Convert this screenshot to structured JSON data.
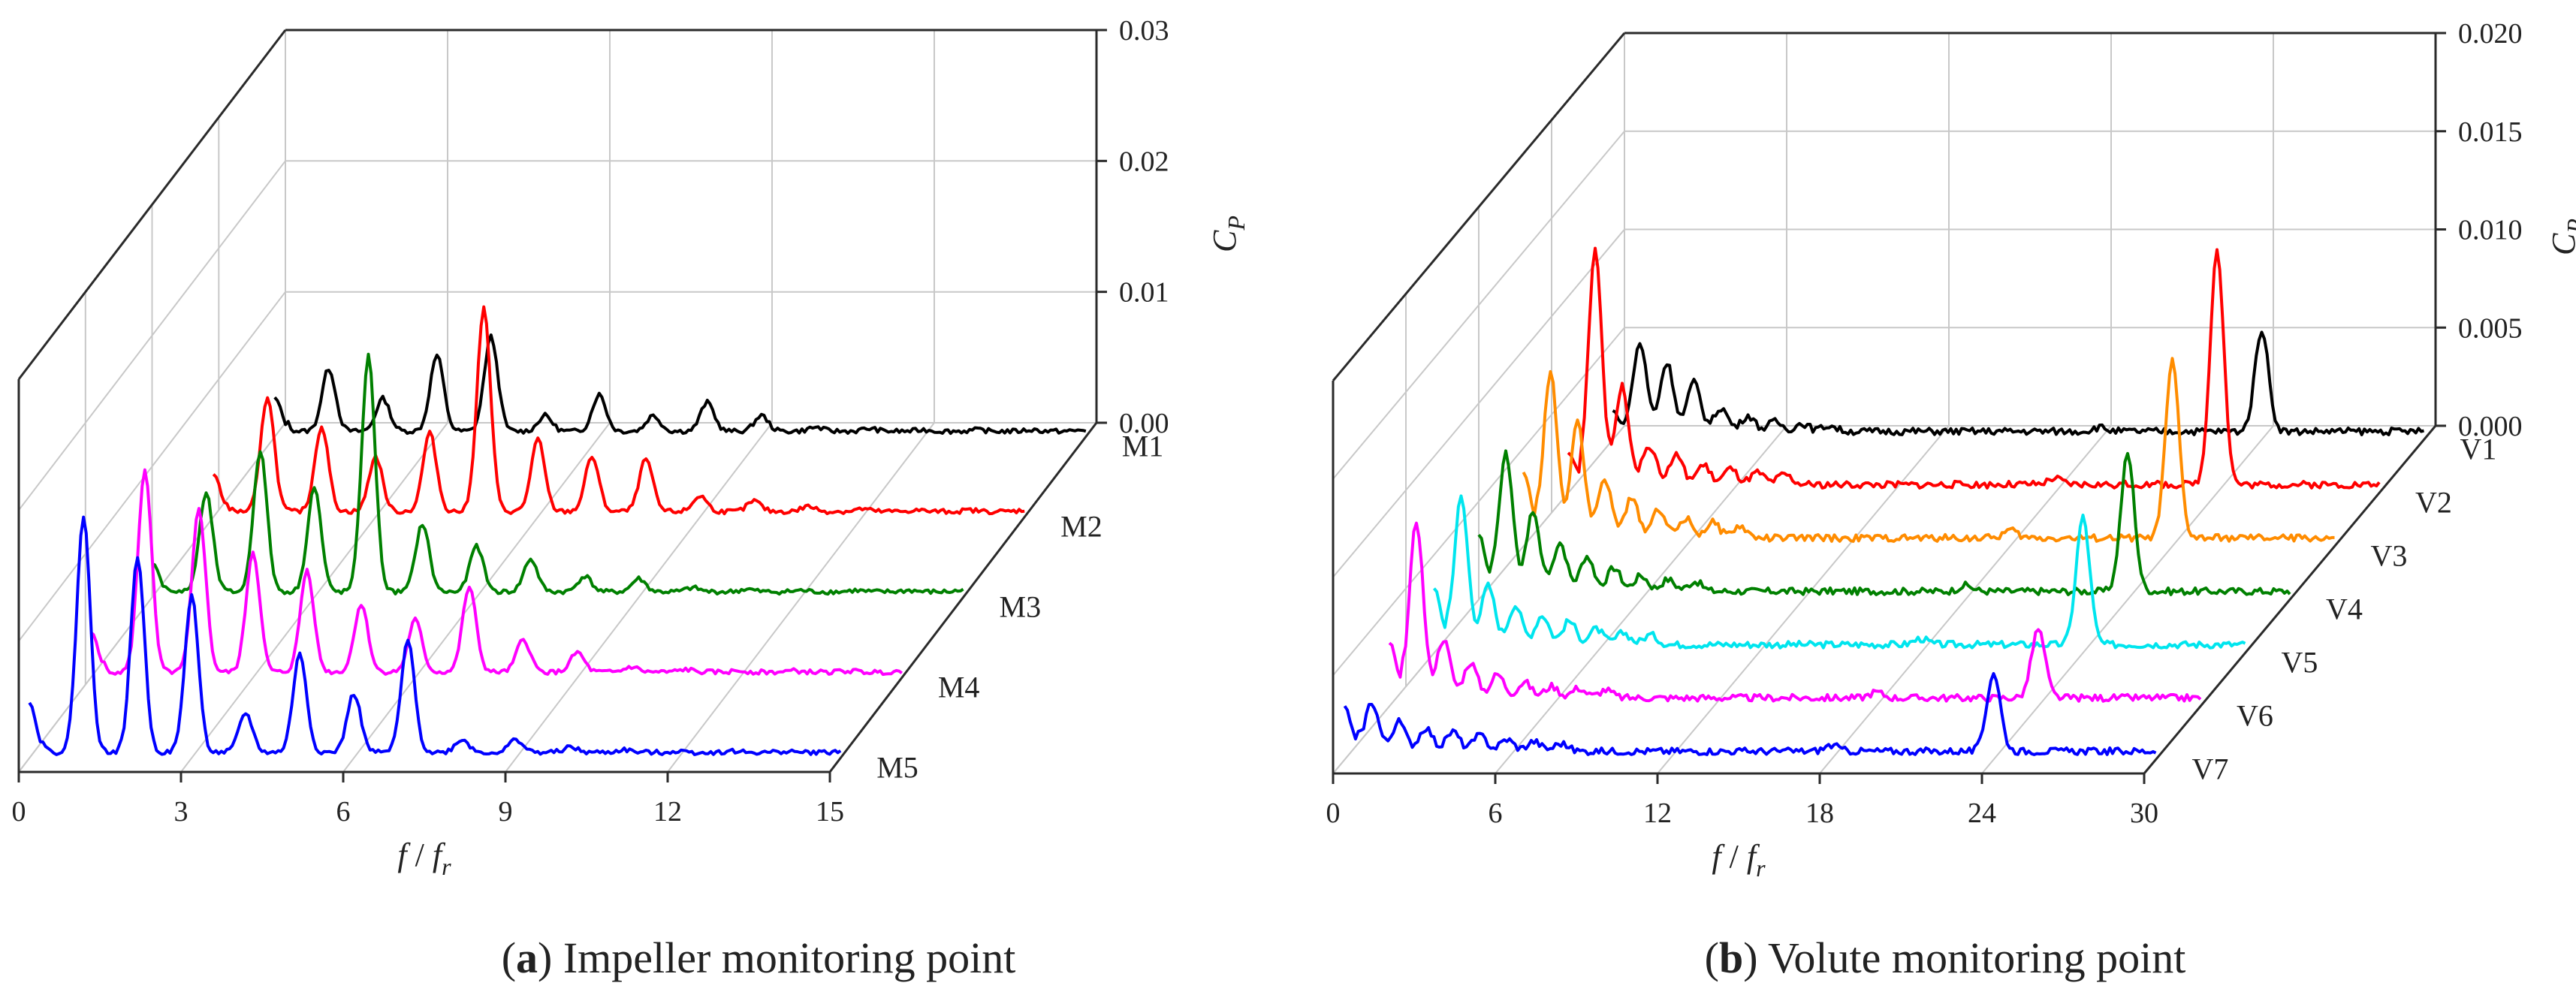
{
  "chart_data": [
    {
      "panel": "a",
      "type": "line",
      "caption_letter": "a",
      "caption_text": "Impeller monitoring point",
      "xlabel_f": "f",
      "xlabel_sep": " / ",
      "xlabel_fr": "f",
      "xlabel_fr_sub": "r",
      "zlabel": "C",
      "zlabel_sub": "P",
      "xlim": [
        0,
        15
      ],
      "xticks": [
        0,
        3,
        6,
        9,
        12,
        15
      ],
      "zlim": [
        0,
        0.03
      ],
      "zticks": [
        "0.00",
        "0.01",
        "0.02",
        "0.03"
      ],
      "series": [
        {
          "name": "M1",
          "color": "#000000",
          "x": [
            0,
            1,
            2,
            3,
            4,
            5,
            6,
            7,
            8,
            9,
            10,
            11,
            12,
            13,
            14,
            15
          ],
          "peaks": [
            0.0045,
            0.0048,
            0.0025,
            0.0058,
            0.0072,
            0.0012,
            0.0028,
            0.0012,
            0.0022,
            0.0012,
            0.0003,
            0.0002,
            0.0001,
            0.0001,
            0.0001,
            0.0001
          ]
        },
        {
          "name": "M2",
          "color": "#ff0000",
          "x": [
            0,
            1,
            2,
            3,
            4,
            5,
            6,
            7,
            8,
            9,
            10,
            11,
            12,
            13,
            14,
            15
          ],
          "peaks": [
            0.005,
            0.0088,
            0.0065,
            0.0042,
            0.006,
            0.0155,
            0.0055,
            0.0042,
            0.004,
            0.0012,
            0.0008,
            0.0004,
            0.0002,
            0.0001,
            0.0001,
            0.0001
          ]
        },
        {
          "name": "M3",
          "color": "#008000",
          "x": [
            0,
            1,
            2,
            3,
            4,
            5,
            6,
            7,
            8,
            9,
            10,
            11,
            12,
            13,
            14,
            15
          ],
          "peaks": [
            0.004,
            0.0075,
            0.0108,
            0.008,
            0.018,
            0.0052,
            0.0035,
            0.0025,
            0.0012,
            0.001,
            0.0003,
            0.0002,
            0.0001,
            0.0001,
            0.0001,
            0.0001
          ]
        },
        {
          "name": "M4",
          "color": "#ff00ff",
          "x": [
            0,
            1,
            2,
            3,
            4,
            5,
            6,
            7,
            8,
            9,
            10,
            11,
            12,
            13,
            14,
            15
          ],
          "peaks": [
            0.0055,
            0.0155,
            0.0125,
            0.0092,
            0.0078,
            0.0052,
            0.004,
            0.0065,
            0.0025,
            0.0015,
            0.0004,
            0.0002,
            0.0001,
            0.0001,
            0.0001,
            0.0001
          ]
        },
        {
          "name": "M5",
          "color": "#0000ff",
          "x": [
            0,
            1,
            2,
            3,
            4,
            5,
            6,
            7,
            8,
            9,
            10,
            11,
            12,
            13,
            14,
            15
          ],
          "peaks": [
            0.0065,
            0.018,
            0.015,
            0.012,
            0.003,
            0.0075,
            0.0045,
            0.0085,
            0.001,
            0.001,
            0.0004,
            0.0002,
            0.0001,
            0.0001,
            0.0001,
            0.0001
          ]
        }
      ]
    },
    {
      "panel": "b",
      "type": "line",
      "caption_letter": "b",
      "caption_text": "Volute monitoring point",
      "xlabel_f": "f",
      "xlabel_sep": " / ",
      "xlabel_fr": "f",
      "xlabel_fr_sub": "r",
      "zlabel": "C",
      "zlabel_sub": "P",
      "xlim": [
        0,
        30
      ],
      "xticks": [
        0,
        6,
        12,
        18,
        24,
        30
      ],
      "zlim": [
        0,
        0.02
      ],
      "zticks": [
        "0.000",
        "0.005",
        "0.010",
        "0.015",
        "0.020"
      ],
      "series": [
        {
          "name": "V1",
          "color": "#000000",
          "x": [
            0,
            1,
            2,
            3,
            4,
            5,
            6,
            7,
            8,
            18,
            24
          ],
          "peaks": [
            0.002,
            0.0045,
            0.0035,
            0.0025,
            0.0012,
            0.0008,
            0.0005,
            0.0004,
            0.0003,
            0.0002,
            0.0052
          ]
        },
        {
          "name": "V2",
          "color": "#ff0000",
          "x": [
            0,
            1,
            2,
            3,
            4,
            5,
            6,
            7,
            8,
            18,
            24
          ],
          "peaks": [
            0.003,
            0.012,
            0.005,
            0.002,
            0.0015,
            0.001,
            0.0008,
            0.0006,
            0.0005,
            0.0003,
            0.012
          ]
        },
        {
          "name": "V3",
          "color": "#ff8c00",
          "x": [
            0,
            1,
            2,
            3,
            4,
            5,
            6,
            7,
            8,
            18,
            24
          ],
          "peaks": [
            0.006,
            0.0085,
            0.006,
            0.003,
            0.002,
            0.0015,
            0.001,
            0.0008,
            0.0006,
            0.0004,
            0.009
          ]
        },
        {
          "name": "V4",
          "color": "#008000",
          "x": [
            0,
            1,
            2,
            3,
            4,
            5,
            6,
            7,
            8,
            18,
            24
          ],
          "peaks": [
            0.005,
            0.007,
            0.004,
            0.0025,
            0.0018,
            0.0012,
            0.0008,
            0.0006,
            0.0005,
            0.0003,
            0.007
          ]
        },
        {
          "name": "V5",
          "color": "#00e5ee",
          "x": [
            0,
            1,
            2,
            3,
            4,
            5,
            6,
            7,
            8,
            18,
            24
          ],
          "peaks": [
            0.005,
            0.0075,
            0.003,
            0.002,
            0.0015,
            0.0012,
            0.0008,
            0.0006,
            0.0005,
            0.0003,
            0.0065
          ]
        },
        {
          "name": "V6",
          "color": "#ff00ff",
          "x": [
            0,
            1,
            2,
            3,
            4,
            5,
            6,
            7,
            8,
            18,
            24
          ],
          "peaks": [
            0.005,
            0.009,
            0.003,
            0.0018,
            0.0012,
            0.0008,
            0.0006,
            0.0005,
            0.0004,
            0.0003,
            0.0035
          ]
        },
        {
          "name": "V7",
          "color": "#0000ff",
          "x": [
            0,
            1,
            2,
            3,
            4,
            5,
            6,
            7,
            8,
            18,
            24
          ],
          "peaks": [
            0.004,
            0.0025,
            0.0015,
            0.0012,
            0.001,
            0.0008,
            0.0006,
            0.0005,
            0.0004,
            0.0003,
            0.004
          ]
        }
      ]
    }
  ]
}
